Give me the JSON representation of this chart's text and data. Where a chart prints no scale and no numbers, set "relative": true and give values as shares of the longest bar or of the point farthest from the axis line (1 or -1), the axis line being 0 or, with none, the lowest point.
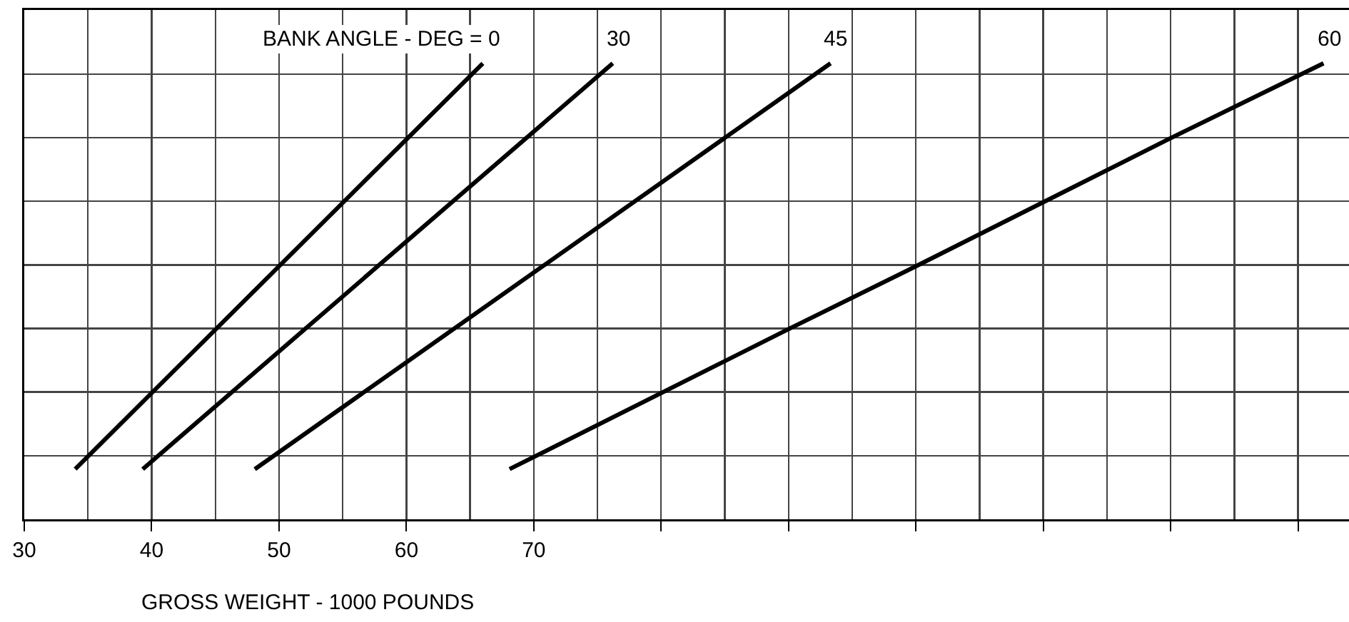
{
  "chart_data": {
    "type": "line",
    "xlabel": "GROSS WEIGHT - 1000 POUNDS",
    "relative": true,
    "xlim": [
      30,
      134
    ],
    "xticks": [
      30,
      40,
      50,
      60,
      70,
      {
        "value": 80,
        "label": null
      },
      {
        "value": 90,
        "label": null
      },
      {
        "value": 100,
        "label": null
      },
      {
        "value": 110,
        "label": null
      },
      {
        "value": 120,
        "label": null
      },
      {
        "value": 130,
        "label": null
      }
    ],
    "grid": true,
    "legend": false,
    "tick_labels": "x",
    "marker": "none",
    "line_style": "solid",
    "series": [
      {
        "name": "BANK ANGLE - DEG = 0",
        "color": "#000000",
        "x": [
          34.0,
          66.0
        ],
        "values": [
          0.11,
          1
        ]
      },
      {
        "name": "30",
        "color": "#000000",
        "x": [
          39.3,
          76.2
        ],
        "values": [
          0.11,
          1
        ]
      },
      {
        "name": "45",
        "color": "#000000",
        "x": [
          48.1,
          93.3
        ],
        "values": [
          0.11,
          1
        ]
      },
      {
        "name": "60",
        "color": "#000000",
        "x": [
          68.1,
          90,
          100,
          120,
          132.0
        ],
        "values": [
          0.11,
          0.417,
          0.555,
          0.836,
          1
        ]
      }
    ]
  }
}
